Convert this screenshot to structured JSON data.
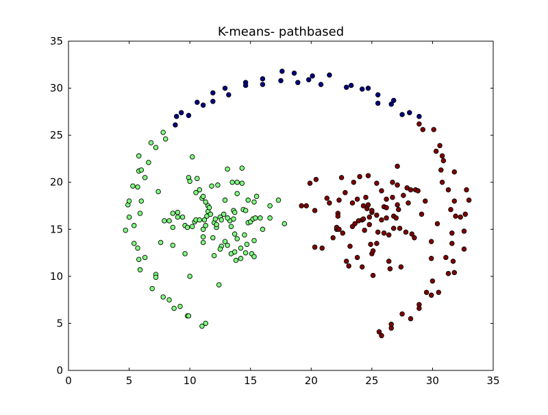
{
  "chart_data": {
    "type": "scatter",
    "title": "K-means- pathbased",
    "xlabel": "",
    "ylabel": "",
    "xlim": [
      0,
      35
    ],
    "ylim": [
      0,
      35
    ],
    "xticks": [
      0,
      5,
      10,
      15,
      20,
      25,
      30,
      35
    ],
    "yticks": [
      0,
      5,
      10,
      15,
      20,
      25,
      30,
      35
    ],
    "grid": false,
    "legend": "none",
    "series": [
      {
        "color": "#00007f",
        "points": [
          [
            8.8,
            26.1
          ],
          [
            8.9,
            27.0
          ],
          [
            9.3,
            27.4
          ],
          [
            9.9,
            27.1
          ],
          [
            10.6,
            28.5
          ],
          [
            11.1,
            28.2
          ],
          [
            11.9,
            28.6
          ],
          [
            11.9,
            29.5
          ],
          [
            12.9,
            30.0
          ],
          [
            13.2,
            29.3
          ],
          [
            14.6,
            30.6
          ],
          [
            14.6,
            30.3
          ],
          [
            16.0,
            31.0
          ],
          [
            16.0,
            30.4
          ],
          [
            17.6,
            31.8
          ],
          [
            17.5,
            30.8
          ],
          [
            18.6,
            31.6
          ],
          [
            18.9,
            30.6
          ],
          [
            19.8,
            30.9
          ],
          [
            20.1,
            31.3
          ],
          [
            20.8,
            30.4
          ],
          [
            21.5,
            31.4
          ],
          [
            22.9,
            30.1
          ],
          [
            23.3,
            30.3
          ],
          [
            24.2,
            29.9
          ],
          [
            24.7,
            30.0
          ],
          [
            25.5,
            29.3
          ],
          [
            25.5,
            28.4
          ],
          [
            26.6,
            28.3
          ],
          [
            26.8,
            28.7
          ],
          [
            27.5,
            27.2
          ],
          [
            28.1,
            27.4
          ],
          [
            28.9,
            27.0
          ]
        ]
      },
      {
        "color": "#7fff7f",
        "points": [
          [
            6.3,
            20.5
          ],
          [
            5.8,
            22.8
          ],
          [
            6.6,
            22.1
          ],
          [
            6.8,
            24.2
          ],
          [
            7.2,
            23.7
          ],
          [
            7.8,
            25.3
          ],
          [
            8.0,
            24.6
          ],
          [
            5.8,
            21.2
          ],
          [
            6.0,
            21.3
          ],
          [
            5.3,
            19.6
          ],
          [
            5.7,
            19.5
          ],
          [
            4.9,
            17.6
          ],
          [
            5.0,
            18.0
          ],
          [
            5.0,
            16.3
          ],
          [
            5.9,
            16.7
          ],
          [
            6.0,
            18.0
          ],
          [
            5.4,
            15.4
          ],
          [
            4.7,
            14.9
          ],
          [
            5.4,
            13.5
          ],
          [
            5.7,
            13.0
          ],
          [
            5.8,
            11.8
          ],
          [
            6.3,
            12.0
          ],
          [
            5.9,
            10.7
          ],
          [
            7.2,
            10.2
          ],
          [
            7.2,
            9.9
          ],
          [
            6.9,
            8.7
          ],
          [
            7.8,
            7.8
          ],
          [
            8.3,
            7.5
          ],
          [
            8.7,
            6.6
          ],
          [
            9.2,
            6.8
          ],
          [
            9.8,
            5.8
          ],
          [
            9.9,
            5.8
          ],
          [
            10.0,
            10.0
          ],
          [
            11.0,
            4.7
          ],
          [
            11.3,
            5.0
          ],
          [
            7.4,
            19.0
          ],
          [
            7.6,
            13.6
          ],
          [
            8.6,
            13.3
          ],
          [
            7.9,
            15.9
          ],
          [
            8.3,
            15.9
          ],
          [
            8.6,
            15.2
          ],
          [
            8.6,
            16.7
          ],
          [
            9.0,
            16.8
          ],
          [
            9.0,
            16.3
          ],
          [
            9.4,
            16.3
          ],
          [
            9.6,
            15.4
          ],
          [
            9.8,
            15.2
          ],
          [
            9.6,
            12.4
          ],
          [
            10.2,
            15.3
          ],
          [
            10.4,
            15.8
          ],
          [
            10.5,
            16.0
          ],
          [
            10.8,
            16.0
          ],
          [
            11.1,
            15.0
          ],
          [
            11.1,
            14.2
          ],
          [
            11.1,
            13.6
          ],
          [
            11.3,
            15.4
          ],
          [
            11.4,
            16.4
          ],
          [
            11.5,
            16.9
          ],
          [
            11.2,
            16.0
          ],
          [
            10.2,
            22.7
          ],
          [
            9.9,
            20.5
          ],
          [
            10.0,
            20.1
          ],
          [
            10.6,
            20.4
          ],
          [
            10.8,
            19.2
          ],
          [
            11.0,
            18.3
          ],
          [
            11.1,
            18.5
          ],
          [
            11.5,
            17.5
          ],
          [
            11.6,
            17.3
          ],
          [
            11.3,
            17.9
          ],
          [
            11.7,
            16.6
          ],
          [
            12.0,
            15.7
          ],
          [
            12.1,
            16.1
          ],
          [
            12.2,
            15.2
          ],
          [
            12.2,
            15.5
          ],
          [
            11.8,
            19.6
          ],
          [
            12.3,
            19.7
          ],
          [
            12.0,
            12.2
          ],
          [
            12.5,
            16.3
          ],
          [
            12.6,
            16.0
          ],
          [
            12.6,
            13.2
          ],
          [
            12.8,
            16.6
          ],
          [
            12.9,
            18.1
          ],
          [
            12.4,
            9.1
          ],
          [
            12.9,
            13.7
          ],
          [
            13.1,
            13.3
          ],
          [
            13.3,
            15.9
          ],
          [
            13.4,
            15.3
          ],
          [
            13.4,
            12.4
          ],
          [
            13.1,
            21.4
          ],
          [
            13.5,
            20.0
          ],
          [
            13.9,
            20.0
          ],
          [
            13.6,
            16.1
          ],
          [
            13.6,
            17.0
          ],
          [
            13.7,
            16.8
          ],
          [
            13.7,
            14.5
          ],
          [
            13.9,
            14.0
          ],
          [
            13.8,
            11.7
          ],
          [
            13.7,
            12.6
          ],
          [
            13.9,
            18.8
          ],
          [
            14.2,
            13.0
          ],
          [
            14.3,
            21.5
          ],
          [
            14.3,
            19.9
          ],
          [
            14.4,
            17.1
          ],
          [
            14.6,
            17.0
          ],
          [
            14.8,
            15.7
          ],
          [
            14.5,
            14.4
          ],
          [
            14.7,
            13.4
          ],
          [
            14.8,
            18.1
          ],
          [
            14.6,
            12.5
          ],
          [
            15.0,
            15.8
          ],
          [
            15.2,
            16.1
          ],
          [
            15.1,
            12.4
          ],
          [
            15.3,
            12.1
          ],
          [
            15.3,
            13.8
          ],
          [
            15.3,
            17.9
          ],
          [
            15.4,
            16.2
          ],
          [
            15.5,
            18.5
          ],
          [
            15.8,
            16.2
          ],
          [
            16.0,
            15.0
          ],
          [
            16.6,
            17.5
          ],
          [
            16.6,
            16.2
          ],
          [
            17.3,
            18.1
          ],
          [
            17.8,
            15.6
          ],
          [
            13.1,
            16.2
          ],
          [
            12.5,
            12.9
          ],
          [
            14.2,
            11.9
          ],
          [
            10.5,
            18.9
          ],
          [
            11.9,
            14.1
          ]
        ]
      },
      {
        "color": "#7f0000",
        "points": [
          [
            19.2,
            17.5
          ],
          [
            19.6,
            17.5
          ],
          [
            19.9,
            19.9
          ],
          [
            20.3,
            17.0
          ],
          [
            20.4,
            20.3
          ],
          [
            20.3,
            13.1
          ],
          [
            20.9,
            13.0
          ],
          [
            21.3,
            18.3
          ],
          [
            21.5,
            17.8
          ],
          [
            21.8,
            14.1
          ],
          [
            22.2,
            16.7
          ],
          [
            22.2,
            16.4
          ],
          [
            22.1,
            15.0
          ],
          [
            22.1,
            15.2
          ],
          [
            22.3,
            15.0
          ],
          [
            22.3,
            18.1
          ],
          [
            22.5,
            20.5
          ],
          [
            22.8,
            18.9
          ],
          [
            22.6,
            14.6
          ],
          [
            22.9,
            11.6
          ],
          [
            23.1,
            11.1
          ],
          [
            23.2,
            13.2
          ],
          [
            23.4,
            17.8
          ],
          [
            23.4,
            15.3
          ],
          [
            23.5,
            20.0
          ],
          [
            23.6,
            15.6
          ],
          [
            23.8,
            18.2
          ],
          [
            23.8,
            12.0
          ],
          [
            23.9,
            15.9
          ],
          [
            24.0,
            20.6
          ],
          [
            24.2,
            16.0
          ],
          [
            24.2,
            11.0
          ],
          [
            24.3,
            17.5
          ],
          [
            24.3,
            16.1
          ],
          [
            24.4,
            14.9
          ],
          [
            24.5,
            18.4
          ],
          [
            24.6,
            17.2
          ],
          [
            24.7,
            20.7
          ],
          [
            24.7,
            17.6
          ],
          [
            24.8,
            16.3
          ],
          [
            24.8,
            15.5
          ],
          [
            24.9,
            13.4
          ],
          [
            25.0,
            16.8
          ],
          [
            25.0,
            17.0
          ],
          [
            25.0,
            12.4
          ],
          [
            25.1,
            12.7
          ],
          [
            25.1,
            10.1
          ],
          [
            25.4,
            19.9
          ],
          [
            25.4,
            16.5
          ],
          [
            25.5,
            14.7
          ],
          [
            25.4,
            13.5
          ],
          [
            25.6,
            4.1
          ],
          [
            25.8,
            3.7
          ],
          [
            25.8,
            19.1
          ],
          [
            25.8,
            16.0
          ],
          [
            26.0,
            17.4
          ],
          [
            26.0,
            14.6
          ],
          [
            26.2,
            18.2
          ],
          [
            26.2,
            17.3
          ],
          [
            26.2,
            16.2
          ],
          [
            26.4,
            11.6
          ],
          [
            26.4,
            14.4
          ],
          [
            26.5,
            10.8
          ],
          [
            26.6,
            4.5
          ],
          [
            26.6,
            4.9
          ],
          [
            26.7,
            18.4
          ],
          [
            26.7,
            20.0
          ],
          [
            26.8,
            16.4
          ],
          [
            26.8,
            15.1
          ],
          [
            27.1,
            21.7
          ],
          [
            27.0,
            16.2
          ],
          [
            27.1,
            19.7
          ],
          [
            27.1,
            17.6
          ],
          [
            27.2,
            17.1
          ],
          [
            27.3,
            15.1
          ],
          [
            27.4,
            11.0
          ],
          [
            27.5,
            6.0
          ],
          [
            27.6,
            18.6
          ],
          [
            27.8,
            14.7
          ],
          [
            27.9,
            19.4
          ],
          [
            28.0,
            17.8
          ],
          [
            28.2,
            5.5
          ],
          [
            28.2,
            19.2
          ],
          [
            28.3,
            14.5
          ],
          [
            28.5,
            14.1
          ],
          [
            28.6,
            19.2
          ],
          [
            28.8,
            19.1
          ],
          [
            28.9,
            7.0
          ],
          [
            28.9,
            6.6
          ],
          [
            29.1,
            16.6
          ],
          [
            29.4,
            18.0
          ],
          [
            29.5,
            8.3
          ],
          [
            29.9,
            8.0
          ],
          [
            29.9,
            13.7
          ],
          [
            29.9,
            11.9
          ],
          [
            30.0,
            9.5
          ],
          [
            30.1,
            25.6
          ],
          [
            30.3,
            23.3
          ],
          [
            30.4,
            15.6
          ],
          [
            30.5,
            8.3
          ],
          [
            30.6,
            23.9
          ],
          [
            30.7,
            21.3
          ],
          [
            30.8,
            20.0
          ],
          [
            30.8,
            22.8
          ],
          [
            30.9,
            22.3
          ],
          [
            31.1,
            12.0
          ],
          [
            31.3,
            19.2
          ],
          [
            31.3,
            10.3
          ],
          [
            31.5,
            17.1
          ],
          [
            31.6,
            14.6
          ],
          [
            31.6,
            13.5
          ],
          [
            31.7,
            11.6
          ],
          [
            31.8,
            21.1
          ],
          [
            31.8,
            18.0
          ],
          [
            31.8,
            10.4
          ],
          [
            31.9,
            16.4
          ],
          [
            32.3,
            16.3
          ],
          [
            32.6,
            12.9
          ],
          [
            32.6,
            14.8
          ],
          [
            32.8,
            19.2
          ],
          [
            32.7,
            16.6
          ],
          [
            33.0,
            18.1
          ],
          [
            28.9,
            26.2
          ],
          [
            29.2,
            25.6
          ]
        ]
      }
    ]
  }
}
